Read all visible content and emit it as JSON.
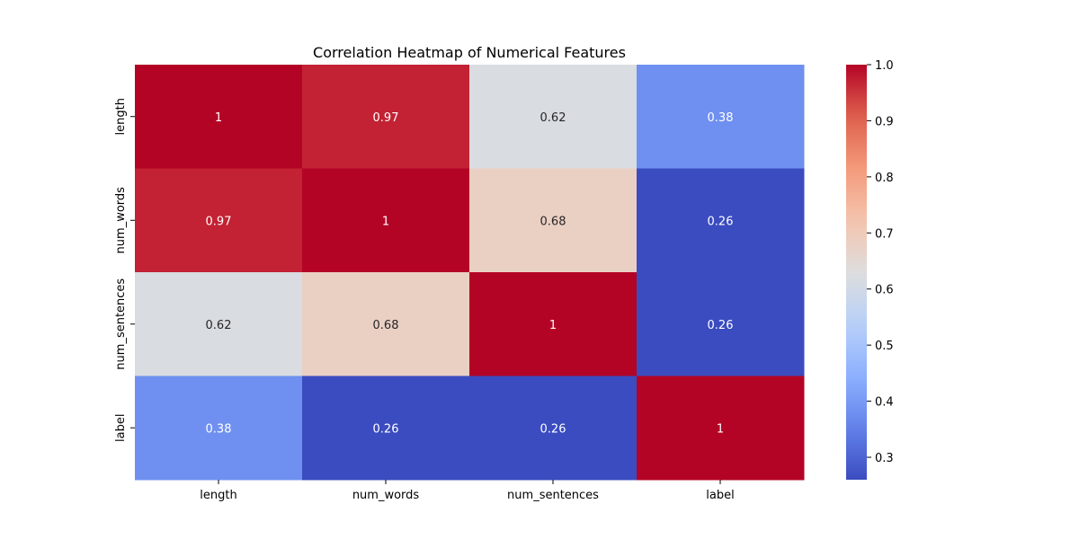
{
  "chart_data": {
    "type": "heatmap",
    "title": "Correlation Heatmap of Numerical Features",
    "xlabel": "",
    "ylabel": "",
    "x_categories": [
      "length",
      "num_words",
      "num_sentences",
      "label"
    ],
    "y_categories": [
      "length",
      "num_words",
      "num_sentences",
      "label"
    ],
    "values": [
      [
        1,
        0.97,
        0.62,
        0.38
      ],
      [
        0.97,
        1,
        0.68,
        0.26
      ],
      [
        0.62,
        0.68,
        1,
        0.26
      ],
      [
        0.38,
        0.26,
        0.26,
        1
      ]
    ],
    "value_labels": [
      [
        "1",
        "0.97",
        "0.62",
        "0.38"
      ],
      [
        "0.97",
        "1",
        "0.68",
        "0.26"
      ],
      [
        "0.62",
        "0.68",
        "1",
        "0.26"
      ],
      [
        "0.38",
        "0.26",
        "0.26",
        "1"
      ]
    ],
    "colormap": "coolwarm",
    "color_range": [
      0.26,
      1.0
    ],
    "colorbar_ticks": [
      0.3,
      0.4,
      0.5,
      0.6,
      0.7,
      0.8,
      0.9,
      1.0
    ],
    "colorbar_tick_labels": [
      "0.3",
      "0.4",
      "0.5",
      "0.6",
      "0.7",
      "0.8",
      "0.9",
      "1.0"
    ],
    "grid": false,
    "legend": "colorbar-right"
  }
}
